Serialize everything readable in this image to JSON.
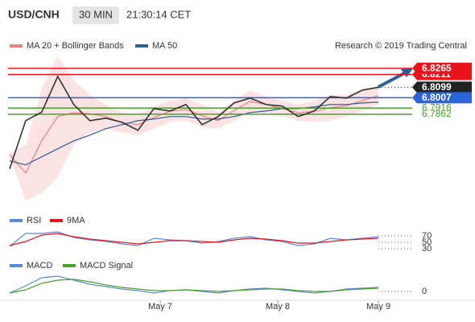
{
  "chart_data": {
    "type": "line",
    "title": "USD/CNH",
    "interval": "30 MIN",
    "time": "21:30:14 CET",
    "credit": "Research © 2019 Trading Central",
    "xticks": [
      "May 7",
      "May 8",
      "May 9"
    ],
    "price": {
      "ylim": [
        6.704,
        6.8406
      ],
      "close": {
        "color": "#333333",
        "values": [
          6.7381,
          6.7805,
          6.788,
          6.8194,
          6.7947,
          6.7805,
          6.7827,
          6.7791,
          6.772,
          6.7911,
          6.789,
          6.7947,
          6.777,
          6.7841,
          6.7961,
          6.8003,
          6.7947,
          6.7933,
          6.7841,
          6.789,
          6.8017,
          6.8003,
          6.8074,
          6.8099
        ]
      },
      "bollinger": {
        "name": "MA 20 + Bollinger Bands",
        "color": "#f08080",
        "values": [
          6.7505,
          6.7346,
          6.7629,
          6.7841,
          6.7876,
          6.7866,
          6.7841,
          6.7788,
          6.777,
          6.7834,
          6.7887,
          6.7904,
          6.7848,
          6.7806,
          6.7894,
          6.7975,
          6.7947,
          6.7912,
          6.7876,
          6.7887,
          6.7919,
          6.7937,
          6.7982,
          6.8025
        ],
        "upper": [
          6.7522,
          6.7593,
          6.8088,
          6.8371,
          6.8159,
          6.8032,
          6.7947,
          6.7876,
          6.7862,
          6.7933,
          6.7982,
          6.8003,
          6.7947,
          6.7876,
          6.7982,
          6.8074,
          6.8017,
          6.7982,
          6.7947,
          6.7982,
          6.8032,
          6.8032,
          6.8074,
          6.8102
        ],
        "lower": [
          6.7487,
          6.7098,
          6.7169,
          6.731,
          6.7593,
          6.7699,
          6.7735,
          6.7699,
          6.7678,
          6.7735,
          6.7791,
          6.7805,
          6.7749,
          6.7735,
          6.7805,
          6.7876,
          6.7876,
          6.7841,
          6.7805,
          6.7791,
          6.7805,
          6.7841,
          6.789,
          6.7947
        ]
      },
      "ma50": {
        "name": "MA 50",
        "color": "#2f5d99",
        "values": [
          6.7452,
          6.7416,
          6.7487,
          6.7558,
          6.7628,
          6.7678,
          6.7735,
          6.777,
          6.7805,
          6.7819,
          6.7841,
          6.7841,
          6.7819,
          6.7819,
          6.7841,
          6.7876,
          6.789,
          6.7911,
          6.7911,
          6.7926,
          6.7947,
          6.7947,
          6.7961,
          6.7968
        ]
      },
      "levels": [
        {
          "value": 6.8211,
          "color": "#e8141b",
          "style": "solid",
          "label_box": true
        },
        {
          "value": 6.8265,
          "color": "#e8141b",
          "style": "solid",
          "label_box": true
        },
        {
          "value": 6.8099,
          "color": "#222222",
          "style": "dotted",
          "label_box": true
        },
        {
          "value": 6.8007,
          "color": "#2b63d9",
          "style": "solid",
          "label_box": true
        },
        {
          "value": 6.7916,
          "color": "#4aa02c",
          "style": "solid",
          "label_box": false
        },
        {
          "value": 6.7862,
          "color": "#4aa02c",
          "style": "solid",
          "label_box": false
        }
      ]
    },
    "rsi": {
      "ylim": [
        0,
        100
      ],
      "yticks": [
        70,
        50,
        30
      ],
      "series": [
        {
          "name": "RSI",
          "color": "#5b8bd6",
          "values": [
            37.5,
            77.5,
            77.5,
            82.5,
            65,
            57.5,
            52.5,
            45,
            40,
            62.5,
            57.5,
            55,
            47.5,
            52.5,
            62.5,
            67.5,
            57.5,
            52.5,
            40,
            45,
            62.5,
            57.5,
            62.5,
            67.5
          ]
        },
        {
          "name": "9MA",
          "color": "#e8141b",
          "values": [
            40,
            52.5,
            72.5,
            77.5,
            67.5,
            60,
            55,
            50,
            45,
            50,
            55,
            55,
            52.5,
            50,
            57.5,
            62.5,
            60,
            55,
            47.5,
            47.5,
            52.5,
            57.5,
            60,
            62.5
          ]
        }
      ]
    },
    "macd": {
      "ylim": [
        -0.002,
        0.005
      ],
      "yticks": [
        0
      ],
      "series": [
        {
          "name": "MACD",
          "color": "#5b8bd6",
          "values": [
            -0.0005,
            0.00175,
            0.00425,
            0.00475,
            0.0035,
            0.00225,
            0.0015,
            0.00075,
            0.00025,
            -0.0005,
            0.00025,
            0.0005,
            0,
            -0.0005,
            0.00025,
            0.00075,
            0.001,
            0.0005,
            0,
            -0.0005,
            0,
            0.00075,
            0.001,
            0.00125
          ]
        },
        {
          "name": "MACD Signal",
          "color": "#4aa02c",
          "values": [
            -0.0005,
            0.0005,
            0.0025,
            0.0035,
            0.00375,
            0.003,
            0.002,
            0.00125,
            0.00075,
            0.00025,
            0.00025,
            0.0005,
            0.00025,
            0,
            0.00025,
            0.0005,
            0.00075,
            0.00075,
            0.00025,
            0,
            0,
            0.0005,
            0.00075,
            0.001
          ]
        }
      ]
    }
  }
}
